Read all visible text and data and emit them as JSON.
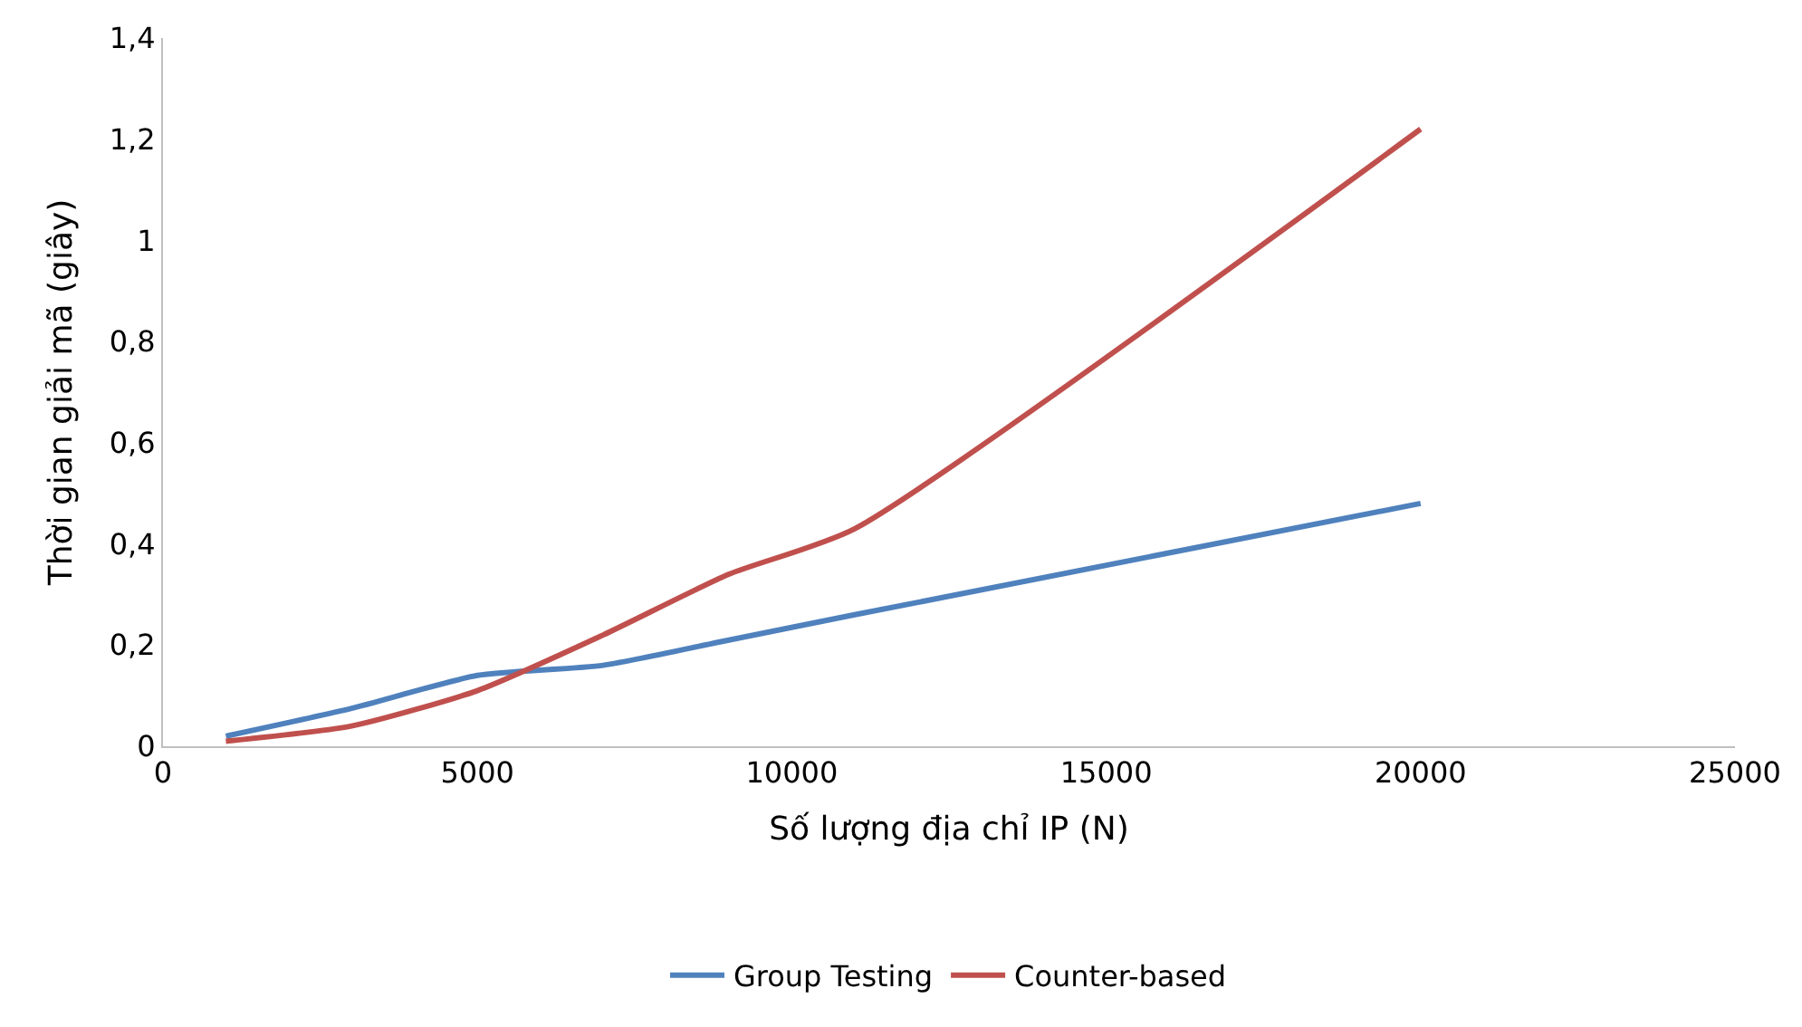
{
  "chart_data": {
    "type": "line",
    "xlabel": "Số lượng địa chỉ IP (N)",
    "ylabel": "Thời gian giải mã (giây)",
    "x": [
      1000,
      3000,
      5000,
      7000,
      9000,
      11000,
      20000
    ],
    "series": [
      {
        "name": "Group Testing",
        "color": "#4f81bd",
        "values": [
          0.02,
          0.075,
          0.14,
          0.16,
          0.21,
          0.26,
          0.48
        ]
      },
      {
        "name": "Counter-based",
        "color": "#c0504d",
        "values": [
          0.01,
          0.04,
          0.11,
          0.22,
          0.34,
          0.43,
          1.22
        ]
      }
    ],
    "xlim": [
      0,
      25000
    ],
    "xticks": [
      0,
      5000,
      10000,
      15000,
      20000,
      25000
    ],
    "ylim": [
      0,
      1.4
    ],
    "yticks": [
      0,
      {
        "value": 0.2,
        "label": "0,2"
      },
      {
        "value": 0.4,
        "label": "0,4"
      },
      {
        "value": 0.6,
        "label": "0,6"
      },
      {
        "value": 0.8,
        "label": "0,8"
      },
      1,
      {
        "value": 1.2,
        "label": "1,2"
      },
      {
        "value": 1.4,
        "label": "1,4"
      }
    ],
    "grid": false,
    "legend": "bottom",
    "marker": "none",
    "line_style": "solid"
  }
}
